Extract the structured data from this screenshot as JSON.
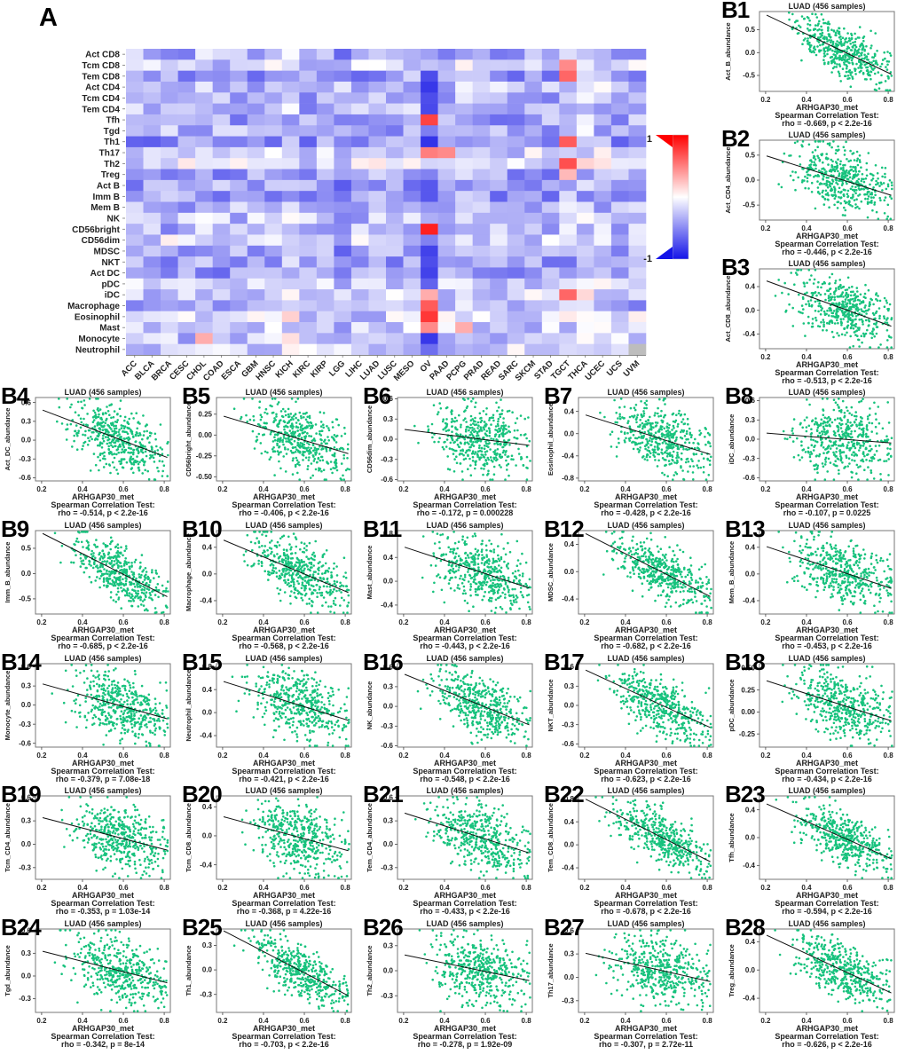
{
  "figure": {
    "panel_a_label": "A",
    "colorbar": {
      "top_label": "1",
      "bottom_label": "-1"
    }
  },
  "chart_data": [
    {
      "id": "A",
      "type": "heatmap",
      "title": "",
      "rows": [
        "Act CD8",
        "Tcm CD8",
        "Tem CD8",
        "Act CD4",
        "Tcm CD4",
        "Tem CD4",
        "Tfh",
        "Tgd",
        "Th1",
        "Th17",
        "Th2",
        "Treg",
        "Act B",
        "Imm B",
        "Mem B",
        "NK",
        "CD56bright",
        "CD56dim",
        "MDSC",
        "NKT",
        "Act DC",
        "pDC",
        "iDC",
        "Macrophage",
        "Eosinophil",
        "Mast",
        "Monocyte",
        "Neutrophil"
      ],
      "cols": [
        "ACC",
        "BLCA",
        "BRCA",
        "CESC",
        "CHOL",
        "COAD",
        "ESCA",
        "GBM",
        "HNSC",
        "KICH",
        "KIRC",
        "KIRP",
        "LGG",
        "LIHC",
        "LUAD",
        "LUSC",
        "MESO",
        "OV",
        "PAAD",
        "PCPG",
        "PRAD",
        "READ",
        "SARC",
        "SKCM",
        "STAD",
        "TGCT",
        "THCA",
        "UCEC",
        "UCS",
        "UVM"
      ],
      "value_range": [
        -1,
        1
      ],
      "legend": {
        "max": "1",
        "min": "-1"
      },
      "note": "Spearman correlation (rho) of ARHGAP30 methylation vs immune-cell abundance across TCGA cancer types; predominantly negative (blue), scattered positive (red) cells.",
      "hot_cells": [
        {
          "row": "Act CD4",
          "col": "OV",
          "v": -0.95
        },
        {
          "row": "Tcm CD4",
          "col": "OV",
          "v": -0.85
        },
        {
          "row": "Tfh",
          "col": "OV",
          "v": 0.8
        },
        {
          "row": "Th17",
          "col": "OV",
          "v": 0.55
        },
        {
          "row": "Th2",
          "col": "OV",
          "v": -0.2
        },
        {
          "row": "CD56bright",
          "col": "OV",
          "v": 0.95
        },
        {
          "row": "CD56dim",
          "col": "OV",
          "v": -0.6
        },
        {
          "row": "MDSC",
          "col": "OV",
          "v": -0.9
        },
        {
          "row": "NKT",
          "col": "OV",
          "v": -0.85
        },
        {
          "row": "Act DC",
          "col": "OV",
          "v": -0.9
        },
        {
          "row": "pDC",
          "col": "OV",
          "v": -0.75
        },
        {
          "row": "iDC",
          "col": "OV",
          "v": 0.35
        },
        {
          "row": "Macrophage",
          "col": "OV",
          "v": 0.7
        },
        {
          "row": "Eosinophil",
          "col": "OV",
          "v": 0.85
        },
        {
          "row": "Mast",
          "col": "OV",
          "v": 0.5
        },
        {
          "row": "Monocyte",
          "col": "OV",
          "v": -0.95
        },
        {
          "row": "Act B",
          "col": "OV",
          "v": -0.8
        },
        {
          "row": "Imm B",
          "col": "OV",
          "v": -0.8
        },
        {
          "row": "Mem B",
          "col": "OV",
          "v": -0.5
        },
        {
          "row": "Tem CD8",
          "col": "TGCT",
          "v": 0.65
        },
        {
          "row": "Tcm CD8",
          "col": "TGCT",
          "v": 0.5
        },
        {
          "row": "Th1",
          "col": "TGCT",
          "v": 0.7
        },
        {
          "row": "Th2",
          "col": "TGCT",
          "v": 0.75
        },
        {
          "row": "iDC",
          "col": "TGCT",
          "v": 0.65
        },
        {
          "row": "Treg",
          "col": "TGCT",
          "v": 0.3
        },
        {
          "row": "Monocyte",
          "col": "CHOL",
          "v": 0.35
        },
        {
          "row": "Th17",
          "col": "PAAD",
          "v": 0.5
        },
        {
          "row": "Mast",
          "col": "PCPG",
          "v": 0.35
        },
        {
          "row": "Neutrophil",
          "col": "UVM",
          "v": "NA"
        }
      ],
      "render": {
        "seed": 1234,
        "row_dark": {
          "Th1": 0.12,
          "Tem CD8": 0.08,
          "NKT": 0.12,
          "Act DC": 0.1,
          "MDSC": 0.1,
          "Imm B": 0.1,
          "Act B": 0.08,
          "Tfh": 0.08,
          "Treg": 0.08,
          "Macrophage": 0.05,
          "Tcm CD8": -0.15,
          "Th17": -0.15,
          "Th2": -0.22,
          "CD56dim": -0.18,
          "iDC": -0.15,
          "Eosinophil": -0.15,
          "Mast": -0.12,
          "Monocyte": -0.1,
          "Neutrophil": -0.15,
          "Act CD4": -0.08,
          "NK": -0.08,
          "pDC": -0.08
        },
        "col_dark": {
          "OV": 0.3,
          "LGG": 0.08,
          "KICH": -0.15,
          "THCA": -0.12,
          "UCEC": -0.08,
          "CHOL": -0.05,
          "PCPG": -0.1,
          "TGCT": -0.05,
          "KIRP": -0.05,
          "UVM": -0.05
        }
      }
    },
    {
      "type": "scatter-grid",
      "shared": {
        "title": "LUAD (456 samples)",
        "xlabel": "ARHGAP30_met",
        "caption_line1": "Spearman Correlation Test:",
        "xticks": [
          "0.2",
          "0.4",
          "0.6",
          "0.8"
        ],
        "xlim": [
          0.17,
          0.83
        ],
        "n_points": 456,
        "point_color": "#17c27d",
        "line_color": "#111111"
      },
      "panels": [
        {
          "id": "B1",
          "ylabel": "Act_B_abundance",
          "rho": -0.669,
          "caption": "rho = -0.669, p < 2.2e-16",
          "yticks": [
            "0.5",
            "0.0",
            "-0.5"
          ],
          "ylim": [
            -0.85,
            0.9
          ]
        },
        {
          "id": "B2",
          "ylabel": "Act_CD4_abundance",
          "rho": -0.446,
          "caption": "rho = -0.446, p < 2.2e-16",
          "yticks": [
            "0.5",
            "0.0",
            "-0.5"
          ],
          "ylim": [
            -0.8,
            0.8
          ]
        },
        {
          "id": "B3",
          "ylabel": "Act_CD8_abundance",
          "rho": -0.513,
          "caption": "rho = -0.513, p < 2.2e-16",
          "yticks": [
            "0.4",
            "0.0",
            "-0.4"
          ],
          "ylim": [
            -0.65,
            0.7
          ]
        },
        {
          "id": "B4",
          "ylabel": "Act_DC_abundance",
          "rho": -0.514,
          "caption": "rho = -0.514, p < 2.2e-16",
          "yticks": [
            "0.6",
            "0.3",
            "0.0",
            "-0.3",
            "-0.6"
          ],
          "ylim": [
            -0.65,
            0.68
          ]
        },
        {
          "id": "B5",
          "ylabel": "CD56bright_abundance",
          "rho": -0.406,
          "caption": "rho = -0.406, p < 2.2e-16",
          "yticks": [
            "0.25",
            "0.00",
            "-0.25",
            "-0.50"
          ],
          "ylim": [
            -0.55,
            0.45
          ]
        },
        {
          "id": "B6",
          "ylabel": "CD56dim_abundance",
          "rho": -0.172,
          "caption": "rho = -0.172, p = 0.000228",
          "yticks": [
            "0.6",
            "0.3",
            "0.0",
            "-0.3",
            "-0.6"
          ],
          "ylim": [
            -0.62,
            0.62
          ]
        },
        {
          "id": "B7",
          "ylabel": "Eosinophil_abundance",
          "rho": -0.428,
          "caption": "rho = -0.428, p < 2.2e-16",
          "yticks": [
            "0.4",
            "0.0",
            "-0.4",
            "-0.8"
          ],
          "ylim": [
            -0.85,
            0.65
          ]
        },
        {
          "id": "B8",
          "ylabel": "iDC_abundance",
          "rho": -0.107,
          "caption": "rho = -0.107, p = 0.0225",
          "yticks": [
            "0.6",
            "0.3",
            "0.0",
            "-0.3",
            "-0.6"
          ],
          "ylim": [
            -0.65,
            0.65
          ]
        },
        {
          "id": "B9",
          "ylabel": "Imm_B_abundance",
          "rho": -0.685,
          "caption": "rho = -0.685, p < 2.2e-16",
          "yticks": [
            "0.5",
            "0.0",
            "-0.5"
          ],
          "ylim": [
            -0.8,
            0.85
          ]
        },
        {
          "id": "B10",
          "ylabel": "Macrophage_abundance",
          "rho": -0.568,
          "caption": "rho = -0.568, p < 2.2e-16",
          "yticks": [
            "0.4",
            "0.0",
            "-0.4"
          ],
          "ylim": [
            -0.6,
            0.65
          ]
        },
        {
          "id": "B11",
          "ylabel": "Mast_abundance",
          "rho": -0.443,
          "caption": "rho = -0.443, p < 2.2e-16",
          "yticks": [
            "0.8",
            "0.4",
            "0.0",
            "-0.4"
          ],
          "ylim": [
            -0.55,
            0.85
          ]
        },
        {
          "id": "B12",
          "ylabel": "MDSC_abundance",
          "rho": -0.682,
          "caption": "rho = -0.682, p < 2.2e-16",
          "yticks": [
            "0.4",
            "0.0",
            "-0.4"
          ],
          "ylim": [
            -0.62,
            0.6
          ]
        },
        {
          "id": "B13",
          "ylabel": "Mem_B_abundance",
          "rho": -0.453,
          "caption": "rho = -0.453, p < 2.2e-16",
          "yticks": [
            "0.4",
            "0.0",
            "-0.4"
          ],
          "ylim": [
            -0.6,
            0.65
          ]
        },
        {
          "id": "B14",
          "ylabel": "Monocyte_abundance",
          "rho": -0.379,
          "caption": "rho = -0.379, p = 7.08e-18",
          "yticks": [
            "0.6",
            "0.3",
            "0.0",
            "-0.3",
            "-0.6"
          ],
          "ylim": [
            -0.66,
            0.65
          ]
        },
        {
          "id": "B15",
          "ylabel": "Neutrophil_abundance",
          "rho": -0.421,
          "caption": "rho = -0.421, p < 2.2e-16",
          "yticks": [
            "0.8",
            "0.4",
            "0.0",
            "-0.4"
          ],
          "ylim": [
            -0.6,
            0.85
          ]
        },
        {
          "id": "B16",
          "ylabel": "NK_abundance",
          "rho": -0.548,
          "caption": "rho = -0.548, p < 2.2e-16",
          "yticks": [
            "0.6",
            "0.3",
            "0.0",
            "-0.3",
            "-0.6"
          ],
          "ylim": [
            -0.62,
            0.65
          ]
        },
        {
          "id": "B17",
          "ylabel": "NKT_abundance",
          "rho": -0.623,
          "caption": "rho = -0.623, p < 2.2e-16",
          "yticks": [
            "0.6",
            "0.3",
            "0.0",
            "-0.3",
            "-0.6"
          ],
          "ylim": [
            -0.65,
            0.65
          ]
        },
        {
          "id": "B18",
          "ylabel": "pDC_abundance",
          "rho": -0.434,
          "caption": "rho = -0.434, p < 2.2e-16",
          "yticks": [
            "0.50",
            "0.25",
            "0.00",
            "-0.25"
          ],
          "ylim": [
            -0.4,
            0.55
          ]
        },
        {
          "id": "B19",
          "ylabel": "Tcm_CD4_abundance",
          "rho": -0.353,
          "caption": "rho = -0.353, p = 1.03e-14",
          "yticks": [
            "0.6",
            "0.3",
            "0.0",
            "-0.3"
          ],
          "ylim": [
            -0.45,
            0.62
          ]
        },
        {
          "id": "B20",
          "ylabel": "Tcm_CD8_abundance",
          "rho": -0.368,
          "caption": "rho = -0.368, p = 4.22e-16",
          "yticks": [
            "0.4",
            "0.0",
            "-0.4"
          ],
          "ylim": [
            -0.6,
            0.55
          ]
        },
        {
          "id": "B21",
          "ylabel": "Tem_CD4_abundance",
          "rho": -0.433,
          "caption": "rho = -0.433, p < 2.2e-16",
          "yticks": [
            "0.6",
            "0.3",
            "0.0",
            "-0.3"
          ],
          "ylim": [
            -0.45,
            0.62
          ]
        },
        {
          "id": "B22",
          "ylabel": "Tem_CD8_abundance",
          "rho": -0.678,
          "caption": "rho = -0.678, p < 2.2e-16",
          "yticks": [
            "0.8",
            "0.4",
            "0.0",
            "-0.4"
          ],
          "ylim": [
            -0.6,
            0.85
          ]
        },
        {
          "id": "B23",
          "ylabel": "Tfh_abundance",
          "rho": -0.594,
          "caption": "rho = -0.594, p < 2.2e-16",
          "yticks": [
            "0.4",
            "0.0",
            "-0.4"
          ],
          "ylim": [
            -0.6,
            0.6
          ]
        },
        {
          "id": "B24",
          "ylabel": "Tgd_abundance",
          "rho": -0.342,
          "caption": "rho = -0.342, p = 8e-14",
          "yticks": [
            "0.6",
            "0.3",
            "0.0",
            "-0.3"
          ],
          "ylim": [
            -0.48,
            0.62
          ]
        },
        {
          "id": "B25",
          "ylabel": "Th1_abundance",
          "rho": -0.703,
          "caption": "rho = -0.703, p < 2.2e-16",
          "yticks": [
            "0.3",
            "0.0",
            "-0.3"
          ],
          "ylim": [
            -0.52,
            0.5
          ]
        },
        {
          "id": "B26",
          "ylabel": "Th2_abundance",
          "rho": -0.278,
          "caption": "rho = -0.278, p = 1.92e-09",
          "yticks": [
            "0.3",
            "0.0",
            "-0.3"
          ],
          "ylim": [
            -0.5,
            0.5
          ]
        },
        {
          "id": "B27",
          "ylabel": "Th17_abundance",
          "rho": -0.307,
          "caption": "rho = -0.307, p = 2.72e-11",
          "yticks": [
            "0.6",
            "0.3",
            "0.0",
            "-0.3"
          ],
          "ylim": [
            -0.45,
            0.62
          ]
        },
        {
          "id": "B28",
          "ylabel": "Treg_abundance",
          "rho": -0.626,
          "caption": "rho = -0.626, p < 2.2e-16",
          "yticks": [
            "0.4",
            "0.0",
            "-0.4"
          ],
          "ylim": [
            -0.6,
            0.58
          ]
        }
      ]
    }
  ]
}
